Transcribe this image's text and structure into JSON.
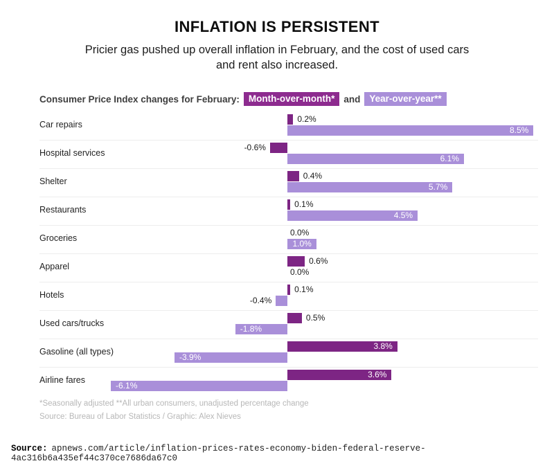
{
  "header": {
    "title": "INFLATION IS PERSISTENT",
    "subtitle_line1": "Pricier gas pushed up overall inflation in February, and the cost of used cars",
    "subtitle_line2": "and rent also increased."
  },
  "legend": {
    "prefix": "Consumer Price Index changes for February:",
    "mom_label": "Month-over-month*",
    "conjunction": "and",
    "yoy_label": "Year-over-year**",
    "mom_color": "#8d2b8f",
    "yoy_color": "#a98fd9"
  },
  "chart_data": {
    "type": "bar",
    "orientation": "horizontal",
    "title": "INFLATION IS PERSISTENT",
    "unit": "%",
    "xlim": [
      -6.5,
      8.6
    ],
    "categories": [
      "Car repairs",
      "Hospital services",
      "Shelter",
      "Restaurants",
      "Groceries",
      "Apparel",
      "Hotels",
      "Used cars/trucks",
      "Gasoline (all types)",
      "Airline fares"
    ],
    "series": [
      {
        "name": "Month-over-month*",
        "color": "#7d2584",
        "values": [
          0.2,
          -0.6,
          0.4,
          0.1,
          0.0,
          0.6,
          0.1,
          0.5,
          3.8,
          3.6
        ],
        "labels": [
          "0.2%",
          "-0.6%",
          "0.4%",
          "0.1%",
          "0.0%",
          "0.6%",
          "0.1%",
          "0.5%",
          "3.8%",
          "3.6%"
        ]
      },
      {
        "name": "Year-over-year**",
        "color": "#a98fd9",
        "values": [
          8.5,
          6.1,
          5.7,
          4.5,
          1.0,
          0.0,
          -0.4,
          -1.8,
          -3.9,
          -6.1
        ],
        "labels": [
          "8.5%",
          "6.1%",
          "5.7%",
          "4.5%",
          "1.0%",
          "0.0%",
          "-0.4%",
          "-1.8%",
          "-3.9%",
          "-6.1%"
        ]
      }
    ]
  },
  "footnotes": {
    "line1": "*Seasonally adjusted **All urban consumers, unadjusted percentage change",
    "line2": "Source: Bureau of Labor Statistics / Graphic: Alex Nieves"
  },
  "page_source": {
    "prefix": "Source:",
    "text": "apnews.com/article/inflation-prices-rates-economy-biden-federal-reserve-4ac316b6a435ef44c370ce7686da67c0"
  }
}
